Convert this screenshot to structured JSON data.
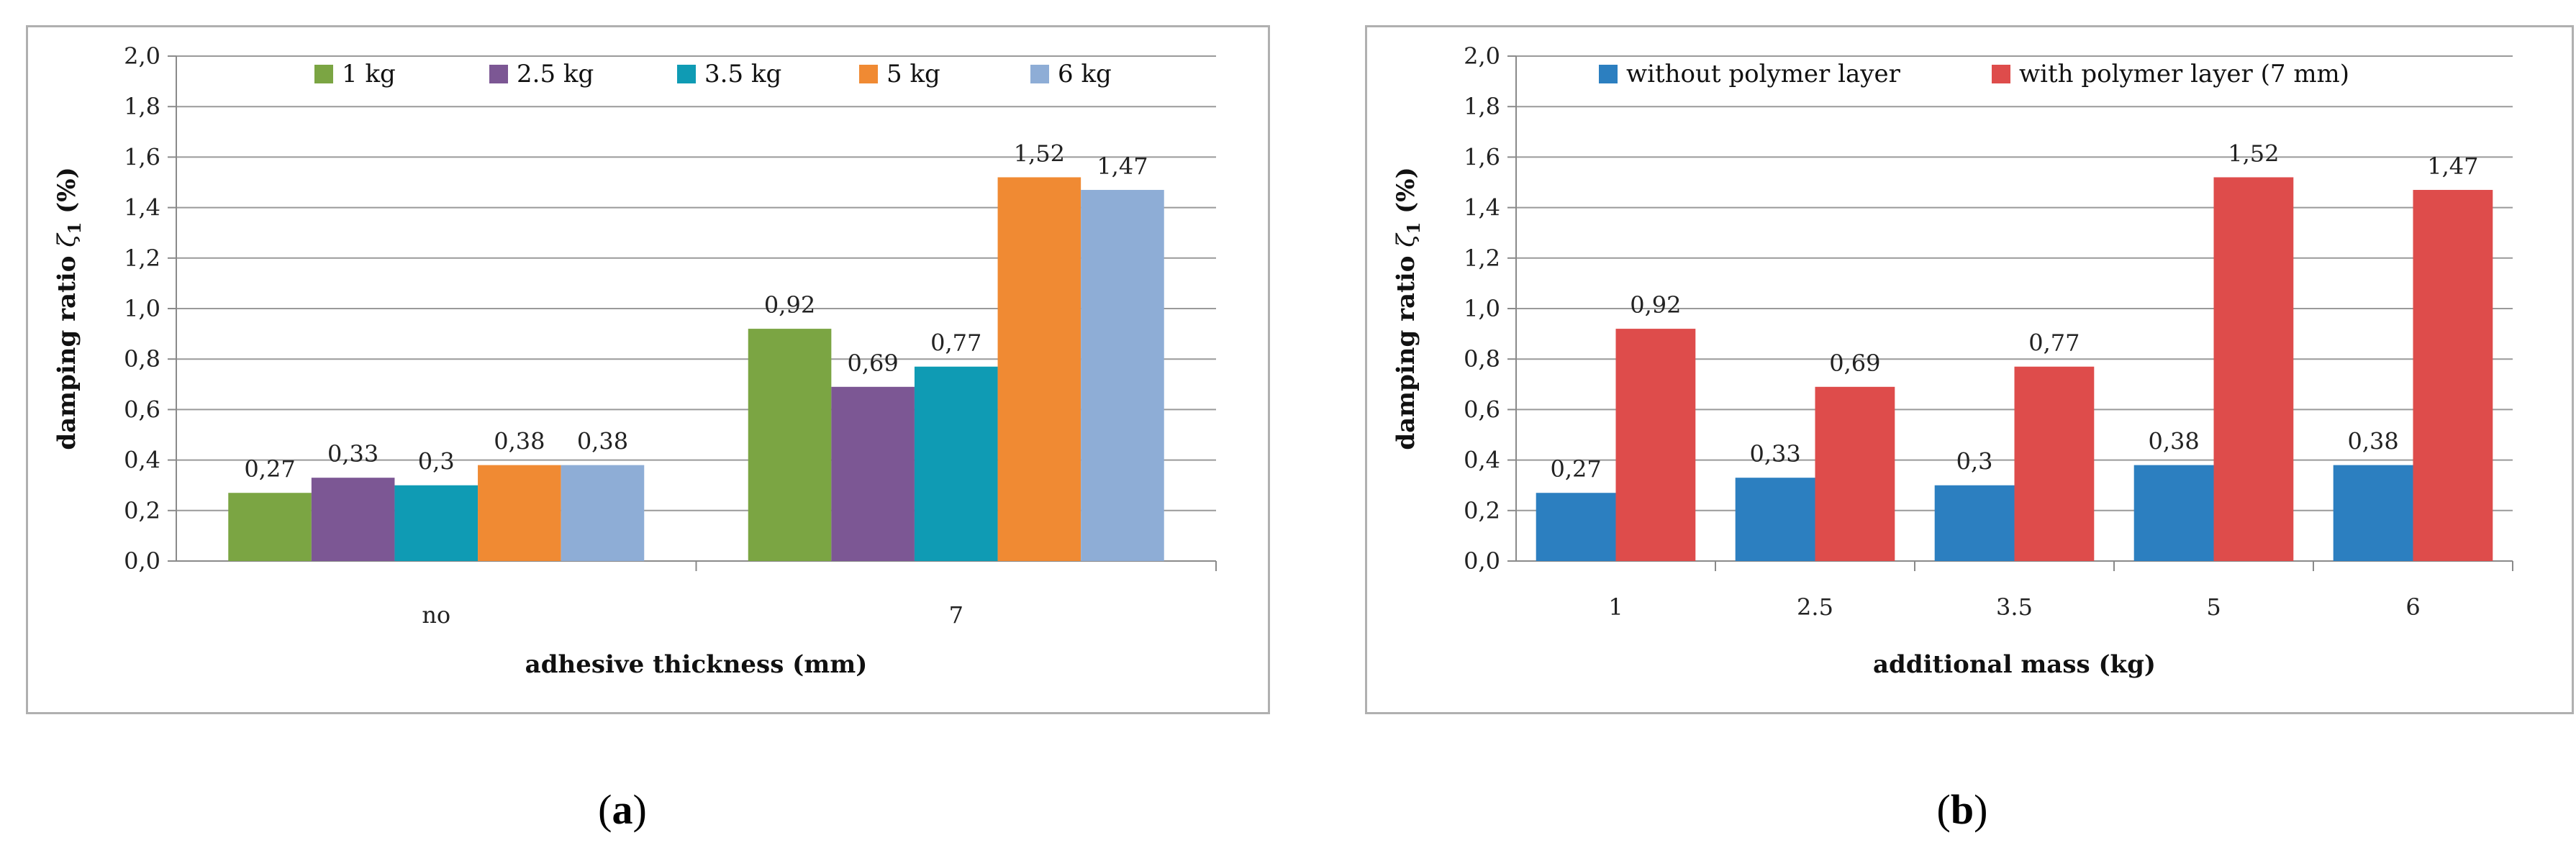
{
  "chart_data": [
    {
      "panel": "a",
      "type": "bar",
      "categories": [
        "no",
        "7"
      ],
      "series": [
        {
          "name": "1 kg",
          "values": [
            0.27,
            0.92
          ],
          "labels": [
            "0,27",
            "0,92"
          ],
          "color": "#7ba543"
        },
        {
          "name": "2.5 kg",
          "values": [
            0.33,
            0.69
          ],
          "labels": [
            "0,33",
            "0,69"
          ],
          "color": "#7c5794"
        },
        {
          "name": "3.5 kg",
          "values": [
            0.3,
            0.77
          ],
          "labels": [
            "0,3",
            "0,77"
          ],
          "color": "#0f9bb4"
        },
        {
          "name": "5 kg",
          "values": [
            0.38,
            1.52
          ],
          "labels": [
            "0,38",
            "1,52"
          ],
          "color": "#f08a33"
        },
        {
          "name": "6 kg",
          "values": [
            0.38,
            1.47
          ],
          "labels": [
            "0,38",
            "1,47"
          ],
          "color": "#8eadd6"
        }
      ],
      "yticks": [
        "0,0",
        "0,2",
        "0,4",
        "0,6",
        "0,8",
        "1,0",
        "1,2",
        "1,4",
        "1,6",
        "1,8",
        "2,0"
      ],
      "ylim": [
        0,
        2.0
      ],
      "ylabel_text": "damping ratio",
      "ylabel_symbol": "ζ",
      "ylabel_sub": "1",
      "ylabel_unit": "(%)",
      "xlabel": "adhesive thickness (mm)",
      "legend_position": "top",
      "grid": true
    },
    {
      "panel": "b",
      "type": "bar",
      "categories": [
        "1",
        "2.5",
        "3.5",
        "5",
        "6"
      ],
      "series": [
        {
          "name": "without polymer layer",
          "values": [
            0.27,
            0.33,
            0.3,
            0.38,
            0.38
          ],
          "labels": [
            "0,27",
            "0,33",
            "0,3",
            "0,38",
            "0,38"
          ],
          "color": "#2c7fc0"
        },
        {
          "name": "with polymer layer (7 mm)",
          "values": [
            0.92,
            0.69,
            0.77,
            1.52,
            1.47
          ],
          "labels": [
            "0,92",
            "0,69",
            "0,77",
            "1,52",
            "1,47"
          ],
          "color": "#de4c4b"
        }
      ],
      "yticks": [
        "0,0",
        "0,2",
        "0,4",
        "0,6",
        "0,8",
        "1,0",
        "1,2",
        "1,4",
        "1,6",
        "1,8",
        "2,0"
      ],
      "ylim": [
        0,
        2.0
      ],
      "ylabel_text": "damping ratio",
      "ylabel_symbol": "ζ",
      "ylabel_sub": "1",
      "ylabel_unit": "(%)",
      "xlabel": "additional mass (kg)",
      "legend_position": "top",
      "grid": true
    }
  ],
  "captions": {
    "a": {
      "open": "(",
      "letter": "a",
      "close": ")"
    },
    "b": {
      "open": "(",
      "letter": "b",
      "close": ")"
    }
  }
}
